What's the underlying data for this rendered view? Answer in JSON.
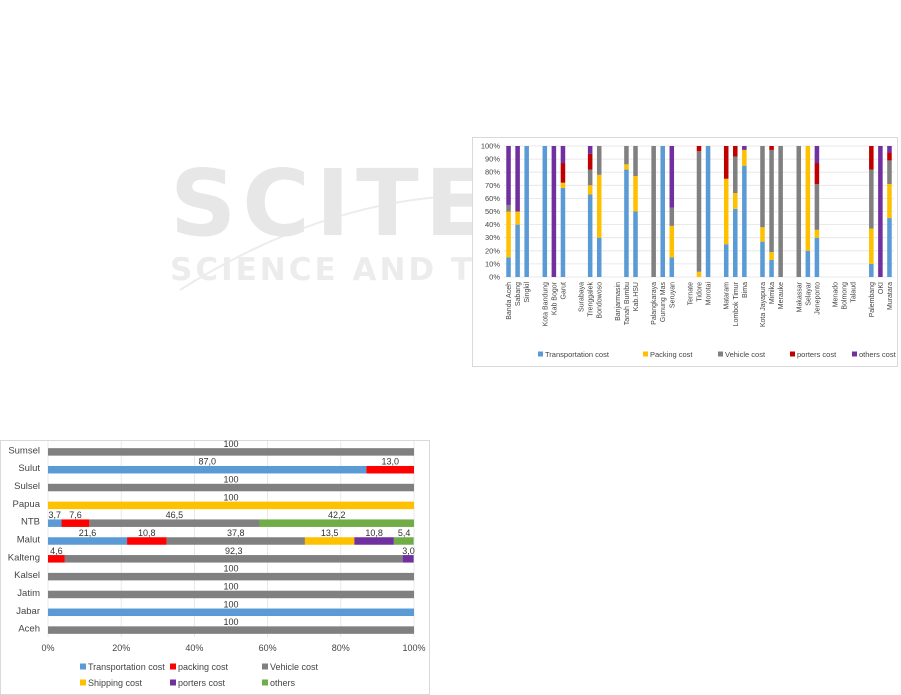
{
  "watermark": {
    "line1": "SCITEPRESS",
    "line2": "SCIENCE AND TECHNOLOGY PUBLICATIONS"
  },
  "chart_data": [
    {
      "type": "bar",
      "orientation": "vertical",
      "stacked": "percent",
      "title": "",
      "xlabel": "",
      "ylabel": "",
      "ylim": [
        0,
        100
      ],
      "y_ticks": [
        "0%",
        "10%",
        "20%",
        "30%",
        "40%",
        "50%",
        "60%",
        "70%",
        "80%",
        "90%",
        "100%"
      ],
      "grid": true,
      "legend_position": "bottom",
      "colors": [
        "#5b9bd5",
        "#ffc000",
        "#808080",
        "#c00000",
        "#7030a0"
      ],
      "categories": [
        "Banda Aceh",
        "Sabang",
        "Singkil",
        "",
        "Kota Bandung",
        "Kab Bogor",
        "Garut",
        "",
        "Surabaya",
        "Trenggalek",
        "Bondowoso",
        "",
        "Banjarmasin",
        "Tanah Bumbu",
        "Kab.HSU",
        "",
        "Palangkaraya",
        "Gunung Mas",
        "Seruyan",
        "",
        "Ternate",
        "Tidore",
        "Morotai",
        "",
        "Mataram",
        "Lombok Timur",
        "Bima",
        "",
        "Kota Jayapura",
        "Mimika",
        "Merauke",
        "",
        "Makassar",
        "Selayar",
        "Jeneponto",
        "",
        "Menado",
        "Bolmong",
        "Talaud",
        "",
        "Palembang",
        "OKI",
        "Muratara"
      ],
      "series": [
        {
          "name": "Transportation cost",
          "values": [
            15,
            40,
            100,
            0,
            100,
            0,
            68,
            0,
            0,
            63,
            30,
            0,
            0,
            82,
            50,
            0,
            0,
            100,
            15,
            0,
            0,
            0,
            100,
            0,
            25,
            52,
            85,
            0,
            27,
            13,
            0,
            0,
            0,
            20,
            30,
            0,
            0,
            0,
            0,
            0,
            10,
            0,
            45
          ]
        },
        {
          "name": "Packing cost",
          "values": [
            35,
            10,
            0,
            0,
            0,
            0,
            4,
            0,
            0,
            7,
            48,
            0,
            0,
            4,
            27,
            0,
            0,
            0,
            24,
            0,
            0,
            4,
            0,
            0,
            50,
            12,
            12,
            0,
            11,
            6,
            0,
            0,
            0,
            80,
            6,
            0,
            0,
            0,
            0,
            0,
            27,
            0,
            26
          ]
        },
        {
          "name": "Vehicle cost",
          "values": [
            5,
            0,
            0,
            0,
            0,
            0,
            0,
            0,
            0,
            12,
            22,
            0,
            0,
            14,
            23,
            0,
            100,
            0,
            14,
            0,
            0,
            92,
            0,
            0,
            0,
            28,
            0,
            0,
            62,
            78,
            100,
            0,
            100,
            0,
            35,
            0,
            0,
            0,
            0,
            0,
            45,
            0,
            18
          ]
        },
        {
          "name": "porters cost",
          "values": [
            0,
            0,
            0,
            0,
            0,
            0,
            15,
            0,
            0,
            12,
            0,
            0,
            0,
            0,
            0,
            0,
            0,
            0,
            0,
            0,
            0,
            4,
            0,
            0,
            25,
            8,
            0,
            0,
            0,
            3,
            0,
            0,
            0,
            0,
            16,
            0,
            0,
            0,
            0,
            0,
            18,
            0,
            6
          ]
        },
        {
          "name": "others cost",
          "values": [
            45,
            50,
            0,
            0,
            0,
            100,
            13,
            0,
            0,
            6,
            0,
            0,
            0,
            0,
            0,
            0,
            0,
            0,
            47,
            0,
            0,
            0,
            0,
            0,
            0,
            0,
            3,
            0,
            0,
            0,
            0,
            0,
            0,
            0,
            13,
            0,
            0,
            0,
            0,
            0,
            0,
            100,
            5
          ]
        }
      ]
    },
    {
      "type": "bar",
      "orientation": "horizontal",
      "stacked": "percent",
      "title": "",
      "xlabel": "",
      "ylabel": "",
      "xlim": [
        0,
        100
      ],
      "x_ticks": [
        "0%",
        "20%",
        "40%",
        "60%",
        "80%",
        "100%"
      ],
      "grid": true,
      "legend_position": "bottom",
      "colors": [
        "#5b9bd5",
        "#ff0000",
        "#808080",
        "#ffc000",
        "#7030a0",
        "#70ad47"
      ],
      "categories": [
        "Sumsel",
        "Sulut",
        "Sulsel",
        "Papua",
        "NTB",
        "Malut",
        "Kalteng",
        "Kalsel",
        "Jatim",
        "Jabar",
        "Aceh"
      ],
      "series": [
        {
          "name": "Transportation cost",
          "values": [
            0,
            87.0,
            0,
            0,
            3.7,
            21.6,
            0,
            0,
            0,
            100,
            0
          ]
        },
        {
          "name": "packing cost",
          "values": [
            0,
            13.0,
            0,
            0,
            7.6,
            10.8,
            4.6,
            0,
            0,
            0,
            0
          ]
        },
        {
          "name": "Vehicle cost",
          "values": [
            100,
            0,
            100,
            0,
            46.5,
            37.8,
            92.3,
            100,
            100,
            0,
            100
          ]
        },
        {
          "name": "Shipping cost",
          "values": [
            0,
            0,
            0,
            100,
            0,
            13.5,
            0,
            0,
            0,
            0,
            0
          ]
        },
        {
          "name": "porters cost",
          "values": [
            0,
            0,
            0,
            0,
            0,
            10.8,
            3.0,
            0,
            0,
            0,
            0
          ]
        },
        {
          "name": "others",
          "values": [
            0,
            0,
            0,
            0,
            42.2,
            5.4,
            0,
            0,
            0,
            0,
            0
          ]
        }
      ],
      "data_labels": [
        {
          "row": 0,
          "text": "100",
          "at": 50
        },
        {
          "row": 1,
          "text": "87,0",
          "at": 43.5
        },
        {
          "row": 1,
          "text": "13,0",
          "at": 93.5
        },
        {
          "row": 2,
          "text": "100",
          "at": 50
        },
        {
          "row": 3,
          "text": "100",
          "at": 50
        },
        {
          "row": 4,
          "text": "3,7",
          "at": 1.85
        },
        {
          "row": 4,
          "text": "7,6",
          "at": 7.5
        },
        {
          "row": 4,
          "text": "46,5",
          "at": 34.55
        },
        {
          "row": 4,
          "text": "42,2",
          "at": 78.9
        },
        {
          "row": 5,
          "text": "21,6",
          "at": 10.8
        },
        {
          "row": 5,
          "text": "10,8",
          "at": 27.0
        },
        {
          "row": 5,
          "text": "37,8",
          "at": 51.3
        },
        {
          "row": 5,
          "text": "13,5",
          "at": 76.95
        },
        {
          "row": 5,
          "text": "10,8",
          "at": 89.1
        },
        {
          "row": 5,
          "text": "5,4",
          "at": 97.3
        },
        {
          "row": 6,
          "text": "4,6",
          "at": 2.3
        },
        {
          "row": 6,
          "text": "92,3",
          "at": 50.75
        },
        {
          "row": 6,
          "text": "3,0",
          "at": 98.5
        },
        {
          "row": 7,
          "text": "100",
          "at": 50
        },
        {
          "row": 8,
          "text": "100",
          "at": 50
        },
        {
          "row": 9,
          "text": "100",
          "at": 50
        },
        {
          "row": 10,
          "text": "100",
          "at": 50
        }
      ]
    }
  ]
}
